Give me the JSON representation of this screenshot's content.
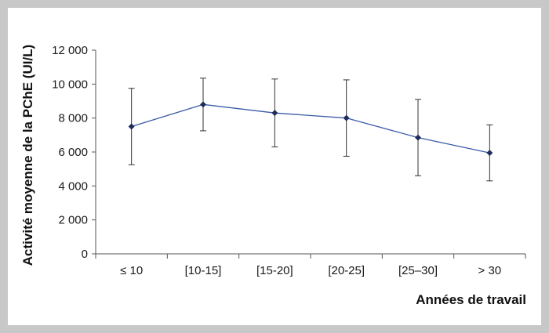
{
  "chart_data": {
    "type": "line",
    "title": "",
    "xlabel": "Années de travail",
    "ylabel": "Activité moyenne de la PChE (UI/L)",
    "categories": [
      "≤ 10",
      "[10-15]",
      "[15-20]",
      "[20-25]",
      "[25–30]",
      "> 30"
    ],
    "series": [
      {
        "values": [
          7500,
          8800,
          8300,
          8000,
          6850,
          5950
        ],
        "error_low": [
          5250,
          7250,
          6300,
          5750,
          4600,
          4300
        ],
        "error_high": [
          9750,
          10350,
          10300,
          10250,
          9100,
          7600
        ]
      }
    ],
    "ylim": [
      0,
      12000
    ],
    "yticks": [
      0,
      2000,
      4000,
      6000,
      8000,
      10000,
      12000
    ],
    "ytick_labels": [
      "0",
      "2 000",
      "4 000",
      "6 000",
      "8 000",
      "10 000",
      "12 000"
    ],
    "grid": false,
    "colors": {
      "line": "#3a5ba8",
      "marker": "#1f2d5c",
      "error_bar": "#333333",
      "axis": "#555555"
    }
  }
}
